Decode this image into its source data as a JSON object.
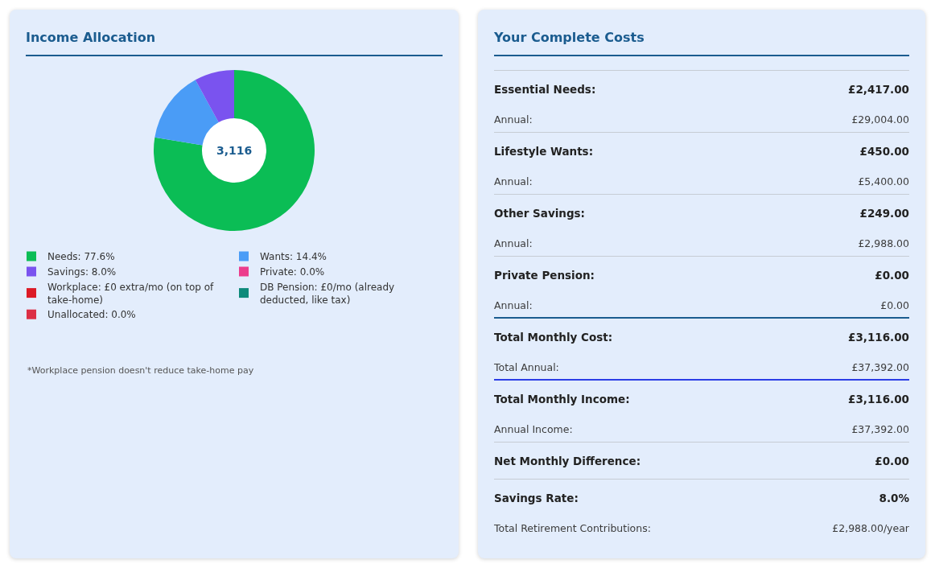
{
  "chart_data": [
    {
      "type": "donut",
      "title": "Income Allocation",
      "categories": [
        "Needs: 77.6%",
        "Wants: 14.4%",
        "Savings: 8.0%",
        "Private: 0.0%",
        "Workplace: £0 extra/mo (on top of take-home)",
        "DB Pension: £0/mo (already deducted, like tax)",
        "Unallocated: 0.0%"
      ],
      "values": [
        77.6,
        14.4,
        8.0,
        0,
        0,
        0,
        0
      ],
      "colors": [
        "#0bbd55",
        "#4a9cf6",
        "#7a53ef",
        "#ec3d8c",
        "#dc1a26",
        "#0d8a7a",
        "#dc2f45"
      ],
      "legend": "bottom",
      "annotations": [
        "3,116",
        "*Workplace pension doesn't reduce take-home pay"
      ]
    },
    {
      "type": "other",
      "title": "Your Complete Costs",
      "annotations": [
        "Essential Needs:",
        "£2,417.00",
        "Annual:",
        "£29,004.00",
        "Lifestyle Wants:",
        "£450.00",
        "Annual:",
        "£5,400.00",
        "Other Savings:",
        "£249.00",
        "Annual:",
        "£2,988.00",
        "Private Pension:",
        "£0.00",
        "Annual:",
        "£0.00",
        "Total Monthly Cost:",
        "£3,116.00",
        "Total Annual:",
        "£37,392.00",
        "Total Monthly Income:",
        "£3,116.00",
        "Annual Income:",
        "£37,392.00",
        "Net Monthly Difference:",
        "£0.00",
        "Savings Rate:",
        "8.0%",
        "Total Retirement Contributions:",
        "£2,988.00/year"
      ]
    }
  ]
}
